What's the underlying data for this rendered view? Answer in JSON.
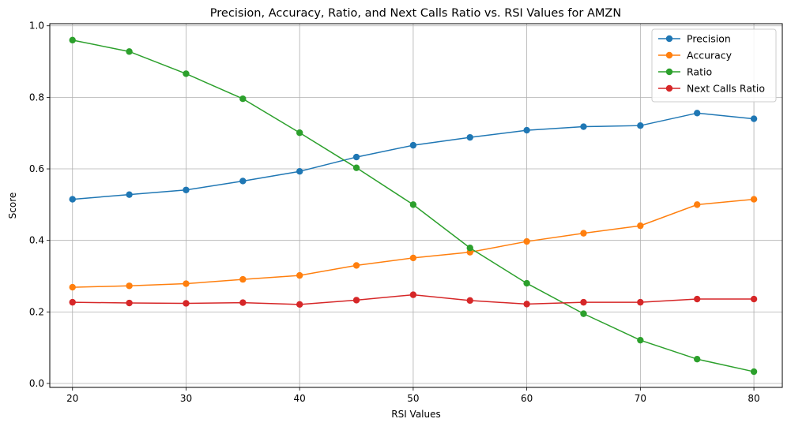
{
  "chart_data": {
    "type": "line",
    "title": "Precision, Accuracy, Ratio, and Next Calls Ratio vs. RSI Values for AMZN",
    "xlabel": "RSI Values",
    "ylabel": "Score",
    "x": [
      20,
      25,
      30,
      35,
      40,
      45,
      50,
      55,
      60,
      65,
      70,
      75,
      80
    ],
    "xlim": [
      18,
      82.5
    ],
    "ylim": [
      -0.011,
      1.006
    ],
    "xticks": [
      "20",
      "30",
      "40",
      "50",
      "60",
      "70",
      "80"
    ],
    "yticks": [
      "0.0",
      "0.2",
      "0.4",
      "0.6",
      "0.8",
      "1.0"
    ],
    "grid": true,
    "legend_position": "top-right",
    "series": [
      {
        "name": "Precision",
        "color": "#1f77b4",
        "values": [
          0.515,
          0.528,
          0.541,
          0.566,
          0.593,
          0.633,
          0.666,
          0.688,
          0.708,
          0.718,
          0.721,
          0.756,
          0.74
        ]
      },
      {
        "name": "Accuracy",
        "color": "#ff7f0e",
        "values": [
          0.269,
          0.273,
          0.279,
          0.291,
          0.302,
          0.33,
          0.351,
          0.367,
          0.397,
          0.42,
          0.441,
          0.5,
          0.515
        ]
      },
      {
        "name": "Ratio",
        "color": "#2ca02c",
        "values": [
          0.96,
          0.928,
          0.866,
          0.796,
          0.701,
          0.603,
          0.5,
          0.379,
          0.28,
          0.195,
          0.121,
          0.068,
          0.033
        ]
      },
      {
        "name": "Next Calls Ratio",
        "color": "#d62728",
        "values": [
          0.227,
          0.225,
          0.224,
          0.226,
          0.221,
          0.233,
          0.248,
          0.232,
          0.222,
          0.227,
          0.227,
          0.236,
          0.236
        ]
      }
    ]
  }
}
